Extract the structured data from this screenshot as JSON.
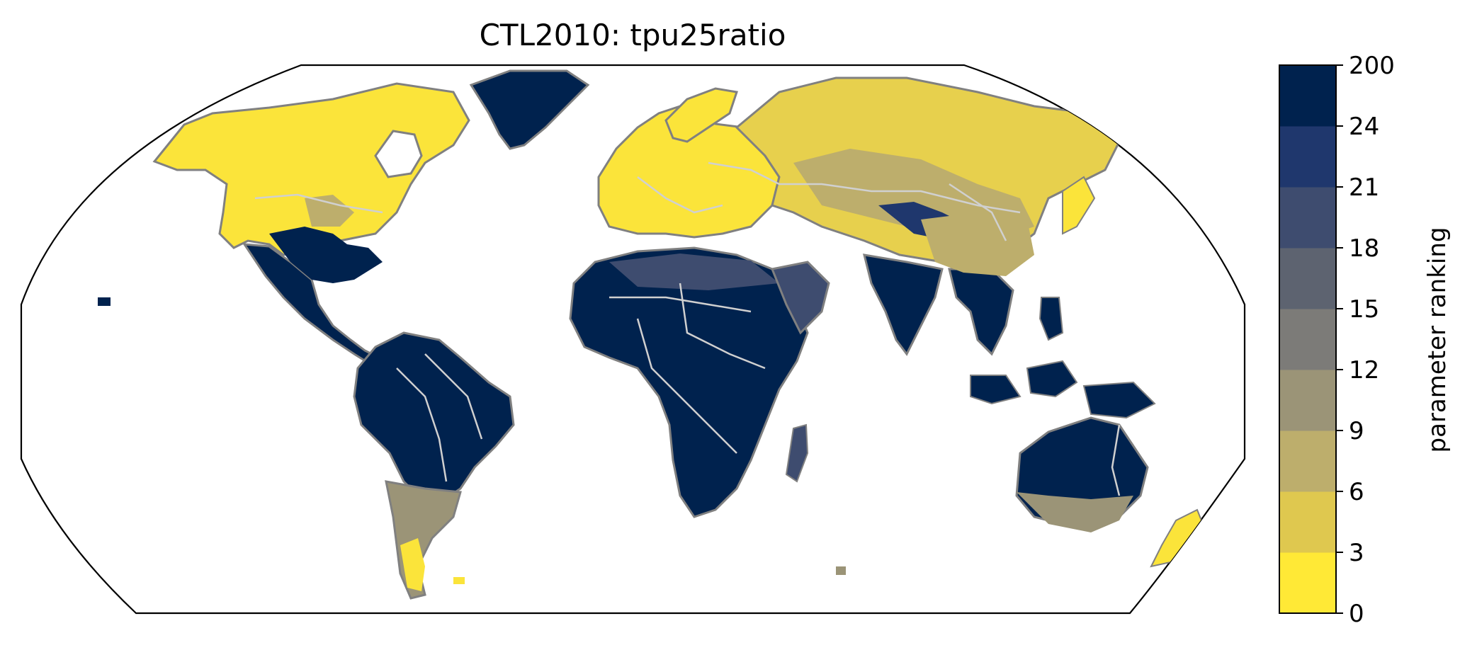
{
  "title": "CTL2010: tpu25ratio",
  "colorbar": {
    "label": "parameter ranking",
    "ticks": [
      "0",
      "3",
      "6",
      "9",
      "12",
      "15",
      "18",
      "21",
      "24",
      "200"
    ],
    "bins": [
      {
        "range": [
          0,
          3
        ],
        "color": "#ffe936"
      },
      {
        "range": [
          3,
          6
        ],
        "color": "#dfc84f"
      },
      {
        "range": [
          6,
          9
        ],
        "color": "#bdae6c"
      },
      {
        "range": [
          9,
          12
        ],
        "color": "#9b9477"
      },
      {
        "range": [
          12,
          15
        ],
        "color": "#7c7b78"
      },
      {
        "range": [
          15,
          18
        ],
        "color": "#5d6370"
      },
      {
        "range": [
          18,
          21
        ],
        "color": "#3e4c6f"
      },
      {
        "range": [
          21,
          24
        ],
        "color": "#1f376d"
      },
      {
        "range": [
          24,
          200
        ],
        "color": "#00224e"
      }
    ]
  },
  "map": {
    "projection": "Robinson",
    "coastline_color": "#808080",
    "border_color": "#d0d0d0",
    "ocean_color": "#ffffff"
  }
}
